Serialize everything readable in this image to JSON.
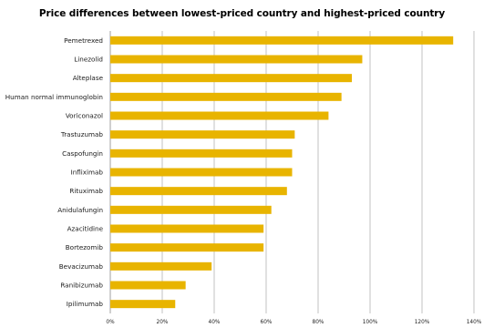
{
  "chart_data": {
    "type": "bar",
    "orientation": "horizontal",
    "title": "Price differences between lowest-priced country and highest-priced country",
    "xlabel": "",
    "ylabel": "",
    "categories": [
      "Pemetrexed",
      "Linezolid",
      "Alteplase",
      "Human normal immunoglobin",
      "Voriconazol",
      "Trastuzumab",
      "Caspofungin",
      "Infliximab",
      "Rituximab",
      "Anidulafungin",
      "Azacitidine",
      "Bortezomib",
      "Bevacizumab",
      "Ranibizumab",
      "Ipilimumab"
    ],
    "values": [
      132,
      97,
      93,
      89,
      84,
      71,
      70,
      70,
      68,
      62,
      59,
      59,
      39,
      29,
      25
    ],
    "xlim": [
      0,
      140
    ],
    "xticks": [
      "0%",
      "20%",
      "40%",
      "60%",
      "80%",
      "100%",
      "120%",
      "140%"
    ],
    "bar_color": "#e8b400",
    "grid": true,
    "legend": "none"
  }
}
